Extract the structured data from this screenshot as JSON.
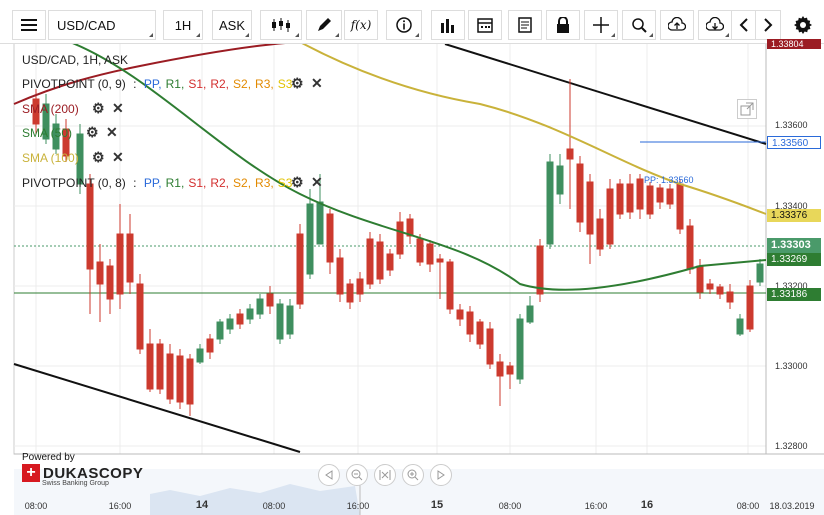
{
  "toolbar": {
    "menu_icon": "hamburger-icon",
    "symbol": "USD/CAD",
    "period": "1H",
    "side": "ASK"
  },
  "legend": {
    "header": "USD/CAD, 1H, ASK",
    "pivot1": {
      "name": "PIVOTPOINT (0, 9)",
      "sep": ":",
      "items": [
        "PP,",
        "R1,",
        "R2,",
        "S2,",
        "R3,",
        "S3"
      ]
    },
    "sma200": "SMA (200)",
    "sma50": "SMA (50)",
    "sma100": "SMA (100)",
    "pivot2": {
      "name": "PIVOTPOINT (0, 8)",
      "sep": ":",
      "items": [
        "PP,",
        "R1,",
        "S1,",
        "R2,",
        "S2,",
        "R3,",
        "S3"
      ]
    },
    "pivot1_items_actual": [
      "PP,",
      "R1,",
      "S1,",
      "R2,",
      "S2,",
      "R3,",
      "S3"
    ]
  },
  "price_axis": {
    "ticks": [
      "1.33804",
      "1.33600",
      "1.33400",
      "1.33200",
      "1.33000",
      "1.32800"
    ],
    "tags": {
      "pp": "1.33560",
      "sma100": "1.33376",
      "last": "1.33303",
      "sma50": "1.33269",
      "s_level": "1.33186"
    }
  },
  "pp_label": "PP: 1.33560",
  "time_axis": {
    "ticks": [
      "08:00",
      "16:00",
      "14",
      "08:00",
      "16:00",
      "15",
      "08:00",
      "16:00",
      "16",
      "08:00",
      "18.03.2019"
    ]
  },
  "branding": {
    "powered": "Powered by",
    "name": "DUKASCOPY",
    "sub": "Swiss Banking Group"
  },
  "colors": {
    "up": "#3f8f5f",
    "down": "#cc3a2e",
    "sma200": "#9b1c23",
    "sma50": "#2e7d32",
    "sma100": "#c9b23a",
    "pp": "#2a6ad9",
    "r1": "#2e7d32",
    "s1": "#d32f2f",
    "r2": "#d32f2f",
    "s2": "#e28a00",
    "r3": "#e28a00",
    "s3": "#e2c300"
  }
}
